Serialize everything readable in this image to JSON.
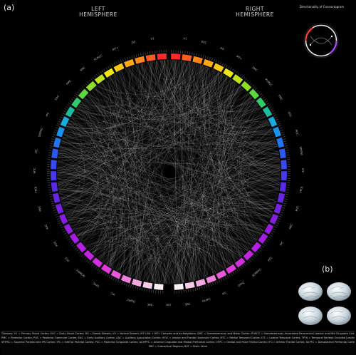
{
  "panel_labels": {
    "a": "(a)",
    "b": "(b)"
  },
  "hemispheres": {
    "left": [
      "LEFT",
      "HEMISPHERE"
    ],
    "right": [
      "RIGHT",
      "HEMISPHERE"
    ]
  },
  "inset": {
    "title": "Directionality of Connectogram"
  },
  "region_labels": {
    "left": [
      "V1",
      "DS",
      "MT+",
      "PLMCC",
      "SMC",
      "PMC",
      "EAC",
      "IPC",
      "SPIPSC",
      "LTC",
      "MTC",
      "TPOJ",
      "PMC",
      "AAC",
      "POC",
      "PCC",
      "ACMPFC",
      "OFPC",
      "IFC",
      "DLPFC",
      "SBC"
    ],
    "right": [
      "V1",
      "EVC",
      "DS",
      "MT+",
      "SMC",
      "PLMCC",
      "PMC",
      "EAC",
      "POC",
      "SPIPSC",
      "LTC",
      "TPOJ",
      "MTC",
      "AAC",
      "IPC",
      "PCC",
      "ACMPFC",
      "OFPC",
      "IFC",
      "DLPFC",
      "SBC"
    ],
    "bottom": "BST"
  },
  "legend": {
    "lines": [
      "Glossary:  V1 = Primary Visual Cortex;   EVC = Early Visual Cortex;   DS = Dorsal Stream;   VS = Ventral Stream;   MT+/V4 + MT+ Complex and its Neighbors;   SMC = Somatosensory and Motor Cortex;   PLMCC = Somatosensory Associated Paracentral Lobular and Mid Cingulate Cortex;",
      "PMC = Premotor Cortex;   POC = Posterior Opercular Cortex;   EAC = Early Auditory Cortex;   AAC = Auditory Association Cortex;   IFOC = Insular and Frontal Opercular Cortex;   MTC = Medial Temporal Cortex;   LTC = Lateral Temporal Cortex;   TPOJ = Temporal Parietal Occipital Junction;",
      "SPIPSC = Superior Parietal and IPS Cortex;   IPC = Inferior Parietal Cortex;   PCC = Posterior Cingulate Cortex;   ACMPFC = Anterior Cingulate and Medial Prefrontal Cortex;   OFPC = Orbital and Polar Frontal Cortex;   IFC = Inferior Frontal Cortex;   DLPFC = Dorsolateral Prefrontal Cortex",
      "SBC = Subcortical Regions;   BST = Brain Stem"
    ]
  },
  "colors": {
    "background": "#000000",
    "links": "#ffffff",
    "legend_text": "#cfcfcf"
  }
}
